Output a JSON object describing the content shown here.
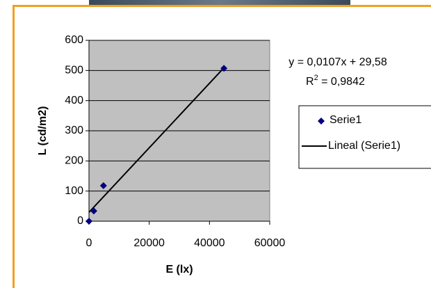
{
  "chart_data": {
    "type": "scatter",
    "x_label": "E (lx)",
    "y_label": "L (cd/m2)",
    "series": [
      {
        "name": "Serie1",
        "color": "#000080",
        "x": [
          0,
          1600,
          4800,
          44800
        ],
        "values": [
          0,
          34,
          118,
          507
        ]
      }
    ],
    "trendline": {
      "name": "Lineal (Serie1)",
      "color": "#000000",
      "slope": 0.0107,
      "intercept": 29.58,
      "equation": "y = 0,0107x + 29,58",
      "r_squared_label": "R",
      "r_squared_sup": "2",
      "r_squared_text": " = 0,9842"
    },
    "xlim": [
      0,
      60000
    ],
    "xticks": [
      0,
      20000,
      40000,
      60000
    ],
    "ylim": [
      0,
      600
    ],
    "yticks": [
      0,
      100,
      200,
      300,
      400,
      500,
      600
    ],
    "grid": true,
    "plot_background": "#c0c0c0"
  }
}
